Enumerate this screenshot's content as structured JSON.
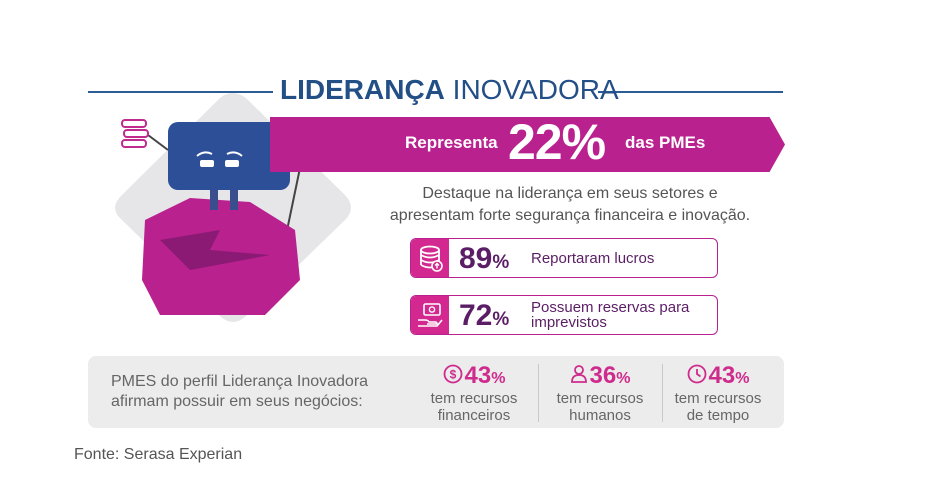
{
  "title": {
    "bold": "LIDERANÇA",
    "regular": "INOVADORA"
  },
  "banner": {
    "prefix": "Representa",
    "percent": "22%",
    "suffix": "das PMEs"
  },
  "description": {
    "line1": "Destaque na liderança em seus setores e",
    "line2": "apresentam forte segurança financeira e inovação."
  },
  "stats": [
    {
      "value": "89",
      "unit": "%",
      "label_line1": "Reportaram lucros",
      "label_line2": "",
      "icon": "coins-icon"
    },
    {
      "value": "72",
      "unit": "%",
      "label_line1": "Possuem reservas para",
      "label_line2": "imprevistos",
      "icon": "money-hand-icon"
    }
  ],
  "panel": {
    "text_line1": "PMES do perfil Liderança Inovadora",
    "text_line2": "afirmam possuir em seus negócios:",
    "metrics": [
      {
        "value": "43",
        "unit": "%",
        "line1": "tem recursos",
        "line2": "financeiros",
        "icon": "dollar-circle-icon"
      },
      {
        "value": "36",
        "unit": "%",
        "line1": "tem recursos",
        "line2": "humanos",
        "icon": "person-icon"
      },
      {
        "value": "43",
        "unit": "%",
        "line1": "tem recursos",
        "line2": "de tempo",
        "icon": "clock-icon"
      }
    ]
  },
  "source": "Fonte: Serasa Experian",
  "colors": {
    "navy": "#234f87",
    "magenta": "#b9218f",
    "purple": "#5b1e66",
    "pink": "#cf2b8d",
    "panel": "#ececec"
  }
}
